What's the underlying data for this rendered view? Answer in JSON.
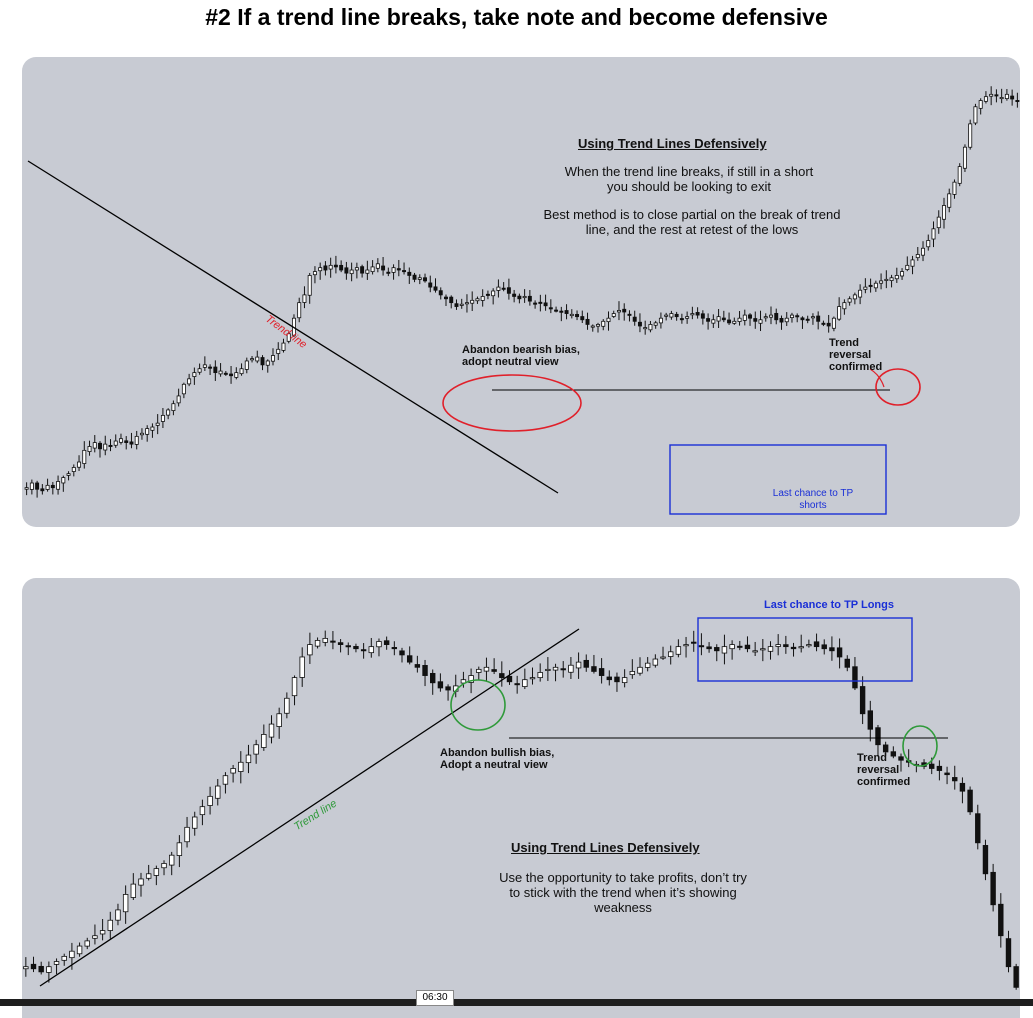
{
  "title": "#2 If a trend line breaks, take note and become defensive",
  "timestamp": "06:30",
  "colors": {
    "panel": "#c8cbd3",
    "red": "#e0202a",
    "blue": "#1a2fd6",
    "green": "#2f9a3a",
    "candle": "#111111"
  },
  "panel1": {
    "heading": "Using Trend Lines Defensively",
    "para1": "When the trend line breaks, if still in a short you should be looking to exit",
    "para2": "Best method is to close partial on the break of trend line, and the rest at retest of the lows",
    "trend_label": "Trend line",
    "abandon_label": "Abandon bearish bias, adopt neutral view",
    "reversal_label": "Trend reversal confirmed",
    "box_label": "Last chance to TP shorts"
  },
  "panel2": {
    "heading": "Using Trend Lines Defensively",
    "para1": "Use the opportunity to take profits, don’t try to stick with the trend when it’s showing weakness",
    "trend_label": "Trend line",
    "abandon_label": "Abandon bullish bias, Adopt a neutral view",
    "reversal_label": "Trend reversal confirmed",
    "box_label": "Last chance to TP Longs"
  },
  "chart_data": [
    {
      "type": "candlestick",
      "title": "",
      "series": [
        {
          "name": "",
          "values": [
            182,
            188,
            180,
            178,
            185,
            182,
            190,
            195,
            200,
            208,
            215,
            230,
            235,
            240,
            232,
            238,
            235,
            242,
            245,
            240,
            238,
            248,
            252,
            258,
            260,
            265,
            275,
            282,
            290,
            300,
            315,
            322,
            330,
            335,
            340,
            336,
            330,
            332,
            328,
            326,
            330,
            335,
            345,
            348,
            350,
            340,
            345,
            352,
            360,
            368,
            380,
            400,
            420,
            430,
            455,
            460,
            465,
            462,
            468,
            466,
            462,
            458,
            462,
            465,
            458,
            462,
            466,
            470,
            462,
            458,
            465,
            462,
            460,
            455,
            450,
            452,
            448,
            440,
            436,
            430,
            425,
            420,
            415,
            418,
            420,
            423,
            425,
            428,
            430,
            435,
            440,
            438,
            432,
            428,
            425,
            428,
            422,
            418,
            420,
            416,
            412,
            410,
            408,
            406,
            405,
            402,
            398,
            392,
            390,
            392,
            396,
            400,
            406,
            410,
            408,
            404,
            396,
            390,
            388,
            392,
            394,
            400,
            404,
            406,
            402,
            398,
            402,
            406,
            404,
            400,
            396,
            398,
            402,
            398,
            394,
            396,
            400,
            404,
            400,
            396,
            398,
            402,
            404,
            398,
            395,
            400,
            404,
            402,
            398,
            398,
            402,
            396,
            392,
            390,
            400,
            415,
            420,
            425,
            430,
            436,
            440,
            442,
            445,
            448,
            450,
            452,
            455,
            460,
            468,
            475,
            482,
            490,
            500,
            515,
            530,
            545,
            560,
            575,
            595,
            620,
            650,
            672,
            680,
            685,
            688,
            686,
            684,
            688,
            682,
            680
          ]
        }
      ]
    },
    {
      "type": "candlestick",
      "title": "",
      "series": [
        {
          "name": "",
          "values": [
            40,
            38,
            35,
            40,
            45,
            50,
            55,
            60,
            65,
            70,
            75,
            85,
            95,
            110,
            120,
            125,
            130,
            135,
            140,
            148,
            160,
            175,
            185,
            195,
            205,
            215,
            225,
            232,
            238,
            245,
            255,
            265,
            275,
            285,
            300,
            320,
            340,
            352,
            356,
            358,
            355,
            352,
            350,
            348,
            346,
            350,
            355,
            352,
            348,
            342,
            335,
            330,
            322,
            315,
            310,
            308,
            312,
            318,
            322,
            328,
            330,
            326,
            320,
            316,
            314,
            318,
            320,
            325,
            328,
            330,
            328,
            332,
            335,
            330,
            326,
            322,
            318,
            316,
            320,
            326,
            330,
            334,
            338,
            340,
            345,
            350,
            352,
            354,
            350,
            348,
            346,
            350,
            352,
            350,
            348,
            346,
            348,
            350,
            352,
            350,
            348,
            350,
            352,
            350,
            348,
            346,
            340,
            330,
            310,
            285,
            270,
            255,
            248,
            244,
            240,
            238,
            236,
            234,
            232,
            230,
            226,
            220,
            210,
            190,
            160,
            130,
            100,
            70,
            40,
            20
          ]
        }
      ]
    }
  ]
}
